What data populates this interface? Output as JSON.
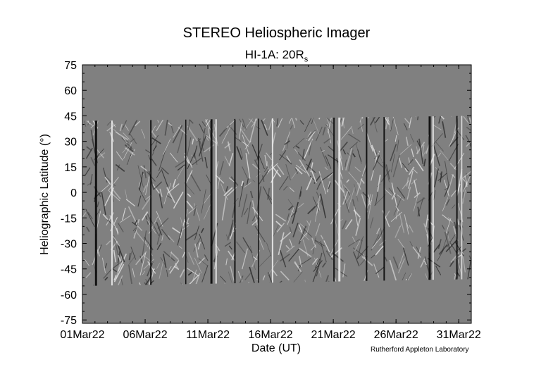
{
  "chart_data": {
    "type": "heatmap",
    "title": "STEREO Heliospheric Imager",
    "subtitle_main": "HI-1A: 20R",
    "subtitle_sub": "s",
    "xlabel": "Date (UT)",
    "ylabel": "Heliographic Latitude (°)",
    "credit": "Rutherford Appleton Laboratory",
    "y_ticks": [
      75,
      60,
      45,
      30,
      15,
      0,
      -15,
      -30,
      -45,
      -60,
      -75
    ],
    "ylim": [
      -77,
      75
    ],
    "x_ticks": [
      {
        "day": 1,
        "label": "01Mar22"
      },
      {
        "day": 6,
        "label": "06Mar22"
      },
      {
        "day": 11,
        "label": "11Mar22"
      },
      {
        "day": 16,
        "label": "16Mar22"
      },
      {
        "day": 21,
        "label": "21Mar22"
      },
      {
        "day": 26,
        "label": "26Mar22"
      },
      {
        "day": 31,
        "label": "31Mar22"
      }
    ],
    "xlim": [
      1,
      32
    ],
    "data_coverage": {
      "lat_top_start": 42,
      "lat_top_end": 45,
      "lat_bottom_start": -55,
      "lat_bottom_end": -51
    },
    "colors": {
      "background": "#808080",
      "light_streak": "#f2f2f2",
      "dark_streak": "#000000"
    }
  }
}
